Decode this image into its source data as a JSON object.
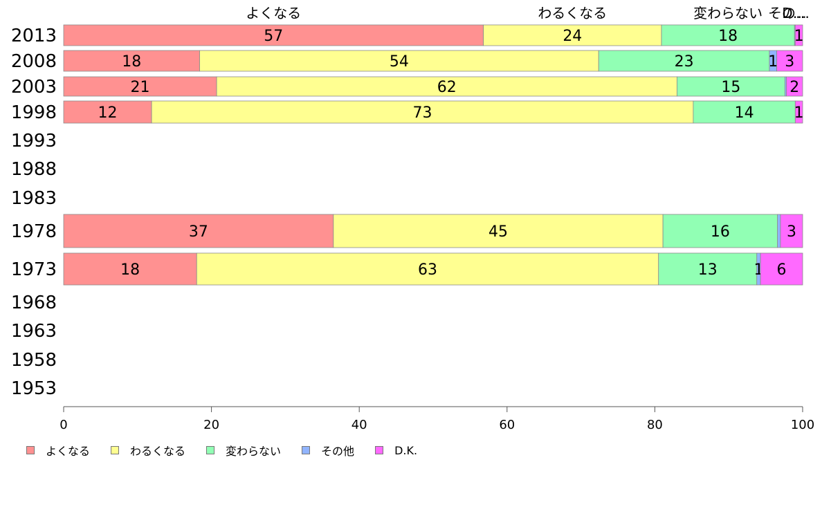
{
  "chart_data": {
    "type": "bar",
    "orientation": "horizontal",
    "stacked": true,
    "title": "",
    "xlabel": "",
    "ylabel": "",
    "xlim": [
      0,
      100
    ],
    "x_ticks": [
      0,
      20,
      40,
      60,
      80,
      100
    ],
    "categories": [
      "2013",
      "2008",
      "2003",
      "1998",
      "1993",
      "1988",
      "1983",
      "1978",
      "1973",
      "1968",
      "1963",
      "1958",
      "1953"
    ],
    "series": [
      {
        "name": "よくなる",
        "color": "#ff9191",
        "values": [
          57,
          18,
          21,
          12,
          null,
          null,
          null,
          37,
          18,
          null,
          null,
          null,
          null
        ],
        "exact": [
          56.8,
          18.4,
          20.7,
          11.9,
          null,
          null,
          null,
          36.5,
          18.0,
          null,
          null,
          null,
          null
        ]
      },
      {
        "name": "わるくなる",
        "color": "#ffff91",
        "values": [
          24,
          54,
          62,
          73,
          null,
          null,
          null,
          45,
          63,
          null,
          null,
          null,
          null
        ],
        "exact": [
          24.1,
          54.0,
          62.3,
          73.3,
          null,
          null,
          null,
          44.6,
          62.5,
          null,
          null,
          null,
          null
        ]
      },
      {
        "name": "変わらない",
        "color": "#91ffb4",
        "values": [
          18,
          23,
          15,
          14,
          null,
          null,
          null,
          16,
          13,
          null,
          null,
          null,
          null
        ],
        "exact": [
          18.0,
          23.1,
          14.6,
          13.8,
          null,
          null,
          null,
          15.5,
          13.3,
          null,
          null,
          null,
          null
        ]
      },
      {
        "name": "その他",
        "color": "#91b4ff",
        "values": [
          0,
          1,
          0,
          0,
          null,
          null,
          null,
          0,
          1,
          null,
          null,
          null,
          null
        ],
        "exact": [
          0.1,
          1.0,
          0.2,
          0.0,
          null,
          null,
          null,
          0.4,
          0.5,
          null,
          null,
          null,
          null
        ]
      },
      {
        "name": "D.K.",
        "color": "#ff6aff",
        "values": [
          1,
          3,
          2,
          1,
          null,
          null,
          null,
          3,
          6,
          null,
          null,
          null,
          null
        ],
        "exact": [
          1.0,
          3.5,
          2.2,
          1.0,
          null,
          null,
          null,
          3.0,
          5.7,
          null,
          null,
          null,
          null
        ]
      }
    ],
    "top_labels": [
      "よくなる",
      "わるくなる",
      "変わらない",
      "その…",
      "D…"
    ],
    "legend_position": "bottom-left",
    "grid": false
  }
}
